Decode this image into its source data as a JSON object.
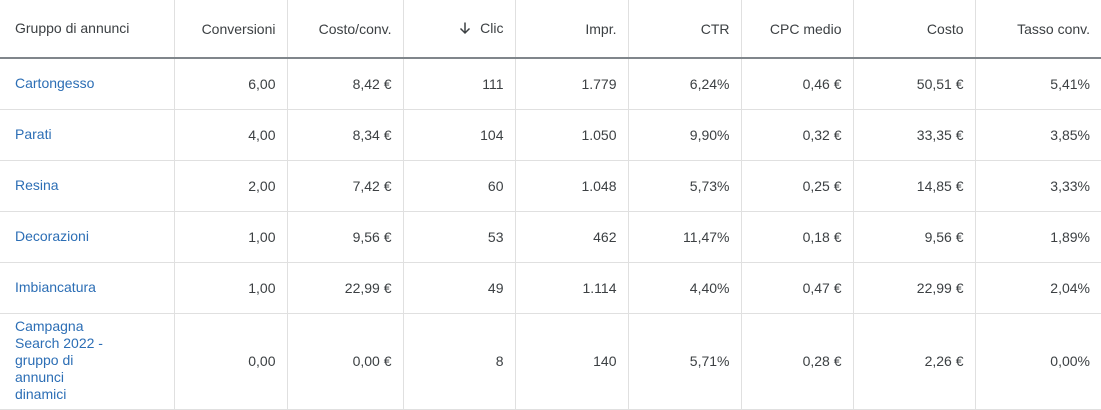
{
  "columns": {
    "group": "Gruppo di annunci",
    "conversions": "Conversioni",
    "cost_per_conv": "Costo/conv.",
    "clicks": "Clic",
    "impressions": "Impr.",
    "ctr": "CTR",
    "avg_cpc": "CPC medio",
    "cost": "Costo",
    "conv_rate": "Tasso conv."
  },
  "sort": {
    "column": "clicks",
    "direction": "descending",
    "icon": "arrow-down-icon"
  },
  "rows": [
    {
      "group": "Cartongesso",
      "conversions": "6,00",
      "cost_per_conv": "8,42 €",
      "clicks": "111",
      "impressions": "1.779",
      "ctr": "6,24%",
      "avg_cpc": "0,46 €",
      "cost": "50,51 €",
      "conv_rate": "5,41%"
    },
    {
      "group": "Parati",
      "conversions": "4,00",
      "cost_per_conv": "8,34 €",
      "clicks": "104",
      "impressions": "1.050",
      "ctr": "9,90%",
      "avg_cpc": "0,32 €",
      "cost": "33,35 €",
      "conv_rate": "3,85%"
    },
    {
      "group": "Resina",
      "conversions": "2,00",
      "cost_per_conv": "7,42 €",
      "clicks": "60",
      "impressions": "1.048",
      "ctr": "5,73%",
      "avg_cpc": "0,25 €",
      "cost": "14,85 €",
      "conv_rate": "3,33%"
    },
    {
      "group": "Decorazioni",
      "conversions": "1,00",
      "cost_per_conv": "9,56 €",
      "clicks": "53",
      "impressions": "462",
      "ctr": "11,47%",
      "avg_cpc": "0,18 €",
      "cost": "9,56 €",
      "conv_rate": "1,89%"
    },
    {
      "group": "Imbiancatura",
      "conversions": "1,00",
      "cost_per_conv": "22,99 €",
      "clicks": "49",
      "impressions": "1.114",
      "ctr": "4,40%",
      "avg_cpc": "0,47 €",
      "cost": "22,99 €",
      "conv_rate": "2,04%"
    },
    {
      "group": "Campagna Search 2022 - gruppo di annunci dinamici",
      "conversions": "0,00",
      "cost_per_conv": "0,00 €",
      "clicks": "8",
      "impressions": "140",
      "ctr": "5,71%",
      "avg_cpc": "0,28 €",
      "cost": "2,26 €",
      "conv_rate": "0,00%"
    }
  ]
}
